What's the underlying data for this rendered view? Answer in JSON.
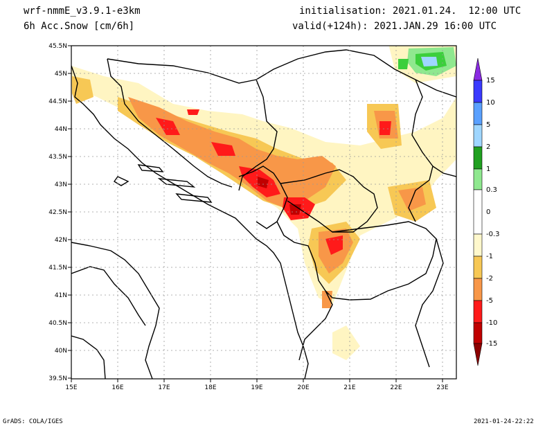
{
  "header": {
    "model": "wrf-nmmE_v3.9.1-e3km",
    "field": "6h Acc.Snow [cm/6h]",
    "init": "initialisation: 2021.01.24.  12:00 UTC",
    "valid": "valid(+124h): 2021.JAN.29 16:00 UTC"
  },
  "axes": {
    "lat_labels": [
      "45.5N",
      "45N",
      "44.5N",
      "44N",
      "43.5N",
      "43N",
      "42.5N",
      "42N",
      "41.5N",
      "41N",
      "40.5N",
      "40N",
      "39.5N"
    ],
    "lon_labels": [
      "15E",
      "16E",
      "17E",
      "18E",
      "19E",
      "20E",
      "21E",
      "22E",
      "23E"
    ],
    "lat_range": [
      39.5,
      45.5
    ],
    "lon_range": [
      15,
      23.3
    ]
  },
  "legend": {
    "labels": [
      "15",
      "10",
      "5",
      "2",
      "1",
      "0.3",
      "0",
      "-0.3",
      "-1",
      "-2",
      "-5",
      "-10",
      "-15"
    ],
    "colors": [
      "#7f00ff",
      "#3a3aff",
      "#5aa0ff",
      "#9fd6ff",
      "#20a020",
      "#3ccf3c",
      "#8fe88f",
      "#ffffff",
      "#fff8cc",
      "#f7c855",
      "#f89748",
      "#ff1a1a",
      "#c00000",
      "#8c0000"
    ]
  },
  "footer": {
    "left": "GrADS: COLA/IGES",
    "right": "2021-01-24-22:22"
  }
}
